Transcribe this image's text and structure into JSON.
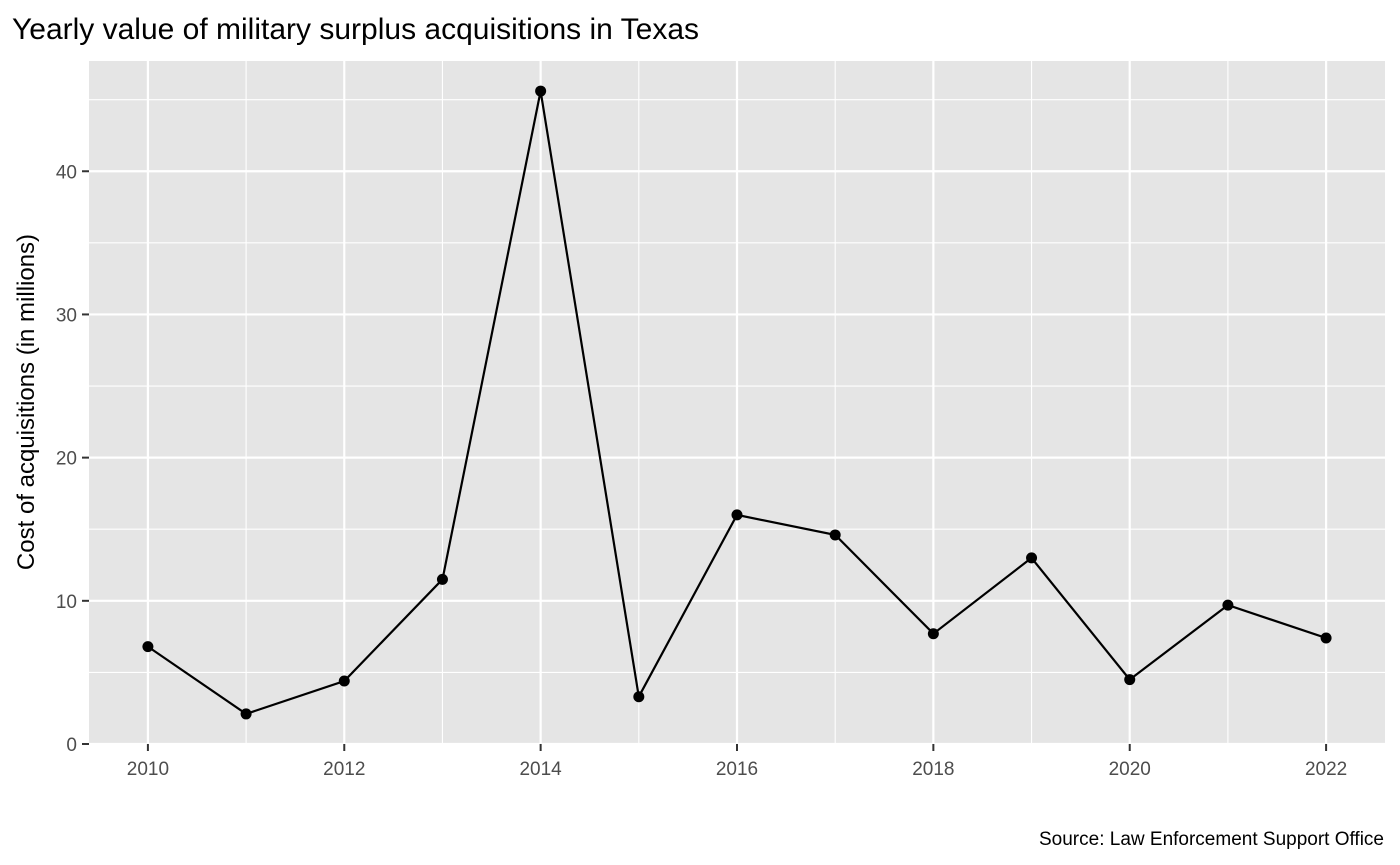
{
  "chart_data": {
    "type": "line",
    "title": "Yearly value of military surplus acquisitions in Texas",
    "xlabel": "",
    "ylabel": "Cost of acquisitions (in millions)",
    "caption": "Source: Law Enforcement Support Office",
    "x": [
      2010,
      2011,
      2012,
      2013,
      2014,
      2015,
      2016,
      2017,
      2018,
      2019,
      2020,
      2021,
      2022
    ],
    "values": [
      6.8,
      2.1,
      4.4,
      11.5,
      45.6,
      3.3,
      16.0,
      14.6,
      7.7,
      13.0,
      4.5,
      9.7,
      7.4
    ],
    "xlim": [
      2009.4,
      2022.6
    ],
    "ylim": [
      0,
      47.7
    ],
    "x_ticks": [
      "2010",
      "2012",
      "2014",
      "2016",
      "2018",
      "2020",
      "2022"
    ],
    "y_ticks": [
      "0",
      "10",
      "20",
      "30",
      "40"
    ],
    "grid": true,
    "legend": "none",
    "colors": {
      "panel": "#e5e5e5",
      "grid": "#ffffff",
      "line": "#000000",
      "point": "#000000"
    }
  }
}
